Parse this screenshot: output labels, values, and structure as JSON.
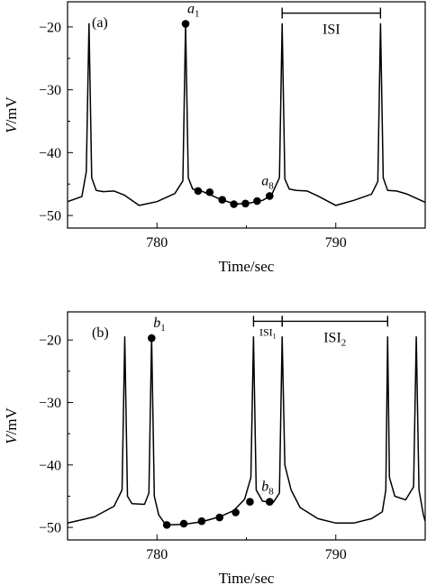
{
  "chart_data": [
    {
      "type": "line",
      "panel_label": "(a)",
      "xlabel": "Time/sec",
      "ylabel": "V/mV",
      "xlim": [
        775,
        795
      ],
      "ylim": [
        -52,
        -16
      ],
      "x_ticks": [
        780,
        790
      ],
      "y_ticks": [
        -20,
        -30,
        -40,
        -50
      ],
      "x_tick_labels": [
        "780",
        "790"
      ],
      "y_tick_labels": [
        "−20",
        "−30",
        "−40",
        "−50"
      ],
      "spike_times": [
        776.2,
        781.6,
        787.0,
        792.5
      ],
      "spike_peak": -19.5,
      "series": [
        {
          "x": [
            775.0,
            775.8,
            776.05,
            776.2,
            776.35,
            776.6,
            777.0,
            777.6,
            778.2,
            779.0,
            780.0,
            781.0,
            781.45,
            781.6,
            781.75,
            782.0,
            782.4,
            782.9,
            783.6,
            784.4,
            785.2,
            785.9,
            786.4,
            786.85,
            787.0,
            787.15,
            787.4,
            787.8,
            788.4,
            789.0,
            790.0,
            791.0,
            792.0,
            792.35,
            792.5,
            792.65,
            792.9,
            793.4,
            794.0,
            795.0
          ],
          "y": [
            -47.8,
            -47.0,
            -43.0,
            -19.5,
            -44.0,
            -46.0,
            -46.2,
            -46.1,
            -46.8,
            -48.4,
            -47.8,
            -46.5,
            -44.5,
            -19.5,
            -44.0,
            -45.8,
            -46.0,
            -46.6,
            -47.5,
            -48.2,
            -48.0,
            -47.6,
            -46.8,
            -44.0,
            -19.5,
            -44.2,
            -45.8,
            -46.0,
            -46.1,
            -46.9,
            -48.4,
            -47.6,
            -46.6,
            -44.6,
            -19.5,
            -44.0,
            -46.0,
            -46.1,
            -46.6,
            -47.9
          ]
        }
      ],
      "markers": {
        "x": [
          781.6,
          782.3,
          782.95,
          783.65,
          784.3,
          784.95,
          785.6,
          786.3
        ],
        "y": [
          -19.5,
          -46.1,
          -46.3,
          -47.5,
          -48.2,
          -48.1,
          -47.7,
          -46.9
        ]
      },
      "annotations": {
        "first_point": {
          "base": "a",
          "sub": "1",
          "x": 781.6,
          "y": -19.5
        },
        "last_point": {
          "base": "a",
          "sub": "8",
          "x": 786.3,
          "y": -46.9
        },
        "intervals": [
          {
            "base": "ISI",
            "sub": "",
            "x_start": 787.0,
            "x_end": 792.5,
            "y": -17.8
          }
        ]
      }
    },
    {
      "type": "line",
      "panel_label": "(b)",
      "xlabel": "Time/sec",
      "ylabel": "V/mV",
      "xlim": [
        775,
        795
      ],
      "ylim": [
        -52,
        -15.5
      ],
      "x_ticks": [
        780,
        790
      ],
      "y_ticks": [
        -20,
        -30,
        -40,
        -50
      ],
      "x_tick_labels": [
        "780",
        "790"
      ],
      "y_tick_labels": [
        "−20",
        "−30",
        "−40",
        "−50"
      ],
      "spike_times": [
        778.2,
        779.7,
        785.4,
        787.0,
        792.9,
        794.5
      ],
      "spike_peak": -19.5,
      "series": [
        {
          "x": [
            775.0,
            776.5,
            777.6,
            778.05,
            778.2,
            778.35,
            778.6,
            779.3,
            779.55,
            779.7,
            779.85,
            780.1,
            780.5,
            781.5,
            782.5,
            783.5,
            784.3,
            784.9,
            785.25,
            785.4,
            785.55,
            785.9,
            786.5,
            786.85,
            787.0,
            787.15,
            787.5,
            788.0,
            789.0,
            790.0,
            791.0,
            792.0,
            792.6,
            792.8,
            792.9,
            793.0,
            793.3,
            793.9,
            794.35,
            794.5,
            794.65,
            794.9,
            795.0
          ],
          "y": [
            -49.3,
            -48.3,
            -46.6,
            -44.0,
            -19.5,
            -45.0,
            -46.2,
            -46.3,
            -44.5,
            -19.5,
            -45.0,
            -48.0,
            -49.6,
            -49.5,
            -49.1,
            -48.3,
            -47.3,
            -45.5,
            -42.0,
            -19.5,
            -44.0,
            -45.8,
            -46.0,
            -44.5,
            -19.5,
            -40.0,
            -44.0,
            -46.8,
            -48.6,
            -49.3,
            -49.3,
            -48.6,
            -47.5,
            -44.0,
            -19.5,
            -42.0,
            -45.0,
            -45.6,
            -43.5,
            -19.5,
            -44.0,
            -48.0,
            -49.0
          ]
        }
      ],
      "markers": {
        "x": [
          779.7,
          780.55,
          781.5,
          782.5,
          783.5,
          784.4,
          785.2,
          786.3
        ],
        "y": [
          -19.7,
          -49.6,
          -49.4,
          -49.0,
          -48.4,
          -47.6,
          -45.9,
          -45.9
        ]
      },
      "annotations": {
        "first_point": {
          "base": "b",
          "sub": "1",
          "x": 779.7,
          "y": -19.7
        },
        "last_point": {
          "base": "b",
          "sub": "8",
          "x": 786.3,
          "y": -45.9
        },
        "intervals": [
          {
            "base": "ISI",
            "sub": "1",
            "x_start": 785.4,
            "x_end": 787.0,
            "y": -17.0
          },
          {
            "base": "ISI",
            "sub": "2",
            "x_start": 787.0,
            "x_end": 792.9,
            "y": -17.0
          }
        ]
      }
    }
  ]
}
